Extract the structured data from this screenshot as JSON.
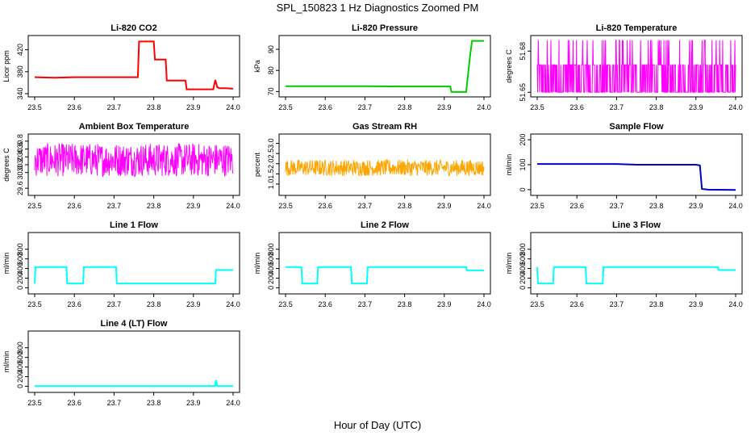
{
  "title": "SPL_150823  1 Hz Diagnostics Zoomed PM",
  "xlabel": "Hour of Day (UTC)",
  "chart_data": [
    {
      "type": "line",
      "title": "Li-820 CO2",
      "ylabel": "Licor ppm",
      "xlim": [
        23.5,
        24.0
      ],
      "ylim": [
        340,
        440
      ],
      "x_ticks": [
        "23.5",
        "23.6",
        "23.7",
        "23.8",
        "23.9",
        "24.0"
      ],
      "y_ticks": [
        "340",
        "380",
        "420"
      ],
      "color": "#ff0000",
      "series": [
        {
          "x": [
            23.5,
            23.55,
            23.6,
            23.65,
            23.7,
            23.76,
            23.763,
            23.8,
            23.803,
            23.83,
            23.833,
            23.88,
            23.883,
            23.95,
            23.955,
            23.96,
            23.965,
            23.98,
            24.0
          ],
          "y": [
            370,
            369,
            370,
            370,
            370,
            370,
            435,
            435,
            402,
            402,
            364,
            364,
            348,
            348,
            365,
            352,
            350,
            350,
            349
          ]
        }
      ]
    },
    {
      "type": "line",
      "title": "Li-820 Pressure",
      "ylabel": "kPa",
      "xlim": [
        23.5,
        24.0
      ],
      "ylim": [
        69,
        95
      ],
      "x_ticks": [
        "23.5",
        "23.6",
        "23.7",
        "23.8",
        "23.9",
        "24.0"
      ],
      "y_ticks": [
        "70",
        "80",
        "90"
      ],
      "color": "#00cc00",
      "series": [
        {
          "x": [
            23.5,
            23.6,
            23.7,
            23.8,
            23.9,
            23.915,
            23.918,
            23.955,
            23.965,
            23.97,
            23.98,
            24.0
          ],
          "y": [
            72.5,
            72.5,
            72.5,
            72.4,
            72.4,
            72.4,
            69.8,
            69.8,
            87,
            94,
            94,
            94
          ]
        }
      ]
    },
    {
      "type": "line",
      "title": "Li-820 Temperature",
      "ylabel": "degrees C",
      "xlim": [
        23.5,
        24.0
      ],
      "ylim": [
        51.649,
        51.689
      ],
      "x_ticks": [
        "23.5",
        "23.6",
        "23.7",
        "23.8",
        "23.9",
        "24.0"
      ],
      "y_ticks": [
        "51.65",
        "51.68"
      ],
      "color": "#ff00ff",
      "series": [
        {
          "x": [
            23.5,
            24.0
          ],
          "y_low": 51.65,
          "y_mid": 51.67,
          "y_high": 51.688
        }
      ]
    },
    {
      "type": "line",
      "title": "Ambient Box Temperature",
      "ylabel": "degrees C",
      "xlim": [
        23.5,
        24.0
      ],
      "ylim": [
        29.5,
        30.9
      ],
      "x_ticks": [
        "23.5",
        "23.6",
        "23.7",
        "23.8",
        "23.9",
        "24.0"
      ],
      "y_ticks": [
        "29.6",
        "30.0",
        "30.2",
        "30.4",
        "30.6",
        "30.8"
      ],
      "color": "#ff00ff",
      "series": [
        {
          "x": [
            23.5,
            24.0
          ],
          "y_low": 29.9,
          "y_high": 30.75
        }
      ]
    },
    {
      "type": "line",
      "title": "Gas Stream RH",
      "ylabel": "percent",
      "xlim": [
        23.5,
        24.0
      ],
      "ylim": [
        0.6,
        3.3
      ],
      "x_ticks": [
        "23.5",
        "23.6",
        "23.7",
        "23.8",
        "23.9",
        "24.0"
      ],
      "y_ticks": [
        "1.0",
        "1.5",
        "2.0",
        "2.5",
        "3.0"
      ],
      "color": "#ffa500",
      "series": [
        {
          "x": [
            23.5,
            24.0
          ],
          "y_low": 1.4,
          "y_high": 2.2
        }
      ]
    },
    {
      "type": "line",
      "title": "Sample Flow",
      "ylabel": "ml/min",
      "xlim": [
        23.5,
        24.0
      ],
      "ylim": [
        -10,
        210
      ],
      "x_ticks": [
        "23.5",
        "23.6",
        "23.7",
        "23.8",
        "23.9",
        "24.0"
      ],
      "y_ticks": [
        "0",
        "100",
        "200"
      ],
      "color": "#0000cc",
      "series": [
        {
          "x": [
            23.5,
            23.6,
            23.7,
            23.75,
            23.8,
            23.9,
            23.91,
            23.915,
            23.93,
            24.0
          ],
          "y": [
            103,
            103,
            103,
            100,
            100,
            100,
            97,
            3,
            0,
            -1
          ]
        }
      ]
    },
    {
      "type": "line",
      "title": "Line 1 Flow",
      "ylabel": "ml/min",
      "xlim": [
        23.5,
        24.0
      ],
      "ylim": [
        -60,
        1080
      ],
      "x_ticks": [
        "23.5",
        "23.6",
        "23.7",
        "23.8",
        "23.9",
        "24.0"
      ],
      "y_ticks": [
        "0",
        "200",
        "400",
        "600",
        "800"
      ],
      "color": "#00ffff",
      "series": [
        {
          "x": [
            23.5,
            23.502,
            23.58,
            23.582,
            23.622,
            23.624,
            23.705,
            23.707,
            23.955,
            23.957,
            24.0
          ],
          "y": [
            90,
            430,
            430,
            90,
            90,
            430,
            430,
            90,
            90,
            370,
            370
          ]
        }
      ]
    },
    {
      "type": "line",
      "title": "Line 2 Flow",
      "ylabel": "ml/min",
      "xlim": [
        23.5,
        24.0
      ],
      "ylim": [
        -60,
        1080
      ],
      "x_ticks": [
        "23.5",
        "23.6",
        "23.7",
        "23.8",
        "23.9",
        "24.0"
      ],
      "y_ticks": [
        "0",
        "200",
        "400",
        "600",
        "800"
      ],
      "color": "#00ffff",
      "series": [
        {
          "x": [
            23.5,
            23.54,
            23.542,
            23.58,
            23.582,
            23.665,
            23.667,
            23.705,
            23.707,
            23.955,
            23.957,
            24.0
          ],
          "y": [
            430,
            430,
            90,
            90,
            430,
            430,
            90,
            90,
            430,
            430,
            360,
            360
          ]
        }
      ]
    },
    {
      "type": "line",
      "title": "Line 3 Flow",
      "ylabel": "ml/min",
      "xlim": [
        23.5,
        24.0
      ],
      "ylim": [
        -60,
        1080
      ],
      "x_ticks": [
        "23.5",
        "23.6",
        "23.7",
        "23.8",
        "23.9",
        "24.0"
      ],
      "y_ticks": [
        "0",
        "200",
        "400",
        "600",
        "800"
      ],
      "color": "#00ffff",
      "series": [
        {
          "x": [
            23.5,
            23.502,
            23.54,
            23.542,
            23.622,
            23.624,
            23.665,
            23.667,
            23.955,
            23.957,
            24.0
          ],
          "y": [
            430,
            90,
            90,
            430,
            430,
            90,
            90,
            430,
            430,
            370,
            370
          ]
        }
      ]
    },
    {
      "type": "line",
      "title": "Line 4 (LT) Flow",
      "ylabel": "ml/min",
      "xlim": [
        23.5,
        24.0
      ],
      "ylim": [
        -60,
        1080
      ],
      "x_ticks": [
        "23.5",
        "23.6",
        "23.7",
        "23.8",
        "23.9",
        "24.0"
      ],
      "y_ticks": [
        "0",
        "200",
        "400",
        "600",
        "800"
      ],
      "color": "#00ffff",
      "series": [
        {
          "x": [
            23.5,
            23.6,
            23.7,
            23.8,
            23.9,
            23.955,
            23.957,
            23.96,
            23.962,
            24.0
          ],
          "y": [
            5,
            5,
            5,
            5,
            5,
            5,
            130,
            10,
            5,
            5
          ]
        }
      ]
    }
  ]
}
